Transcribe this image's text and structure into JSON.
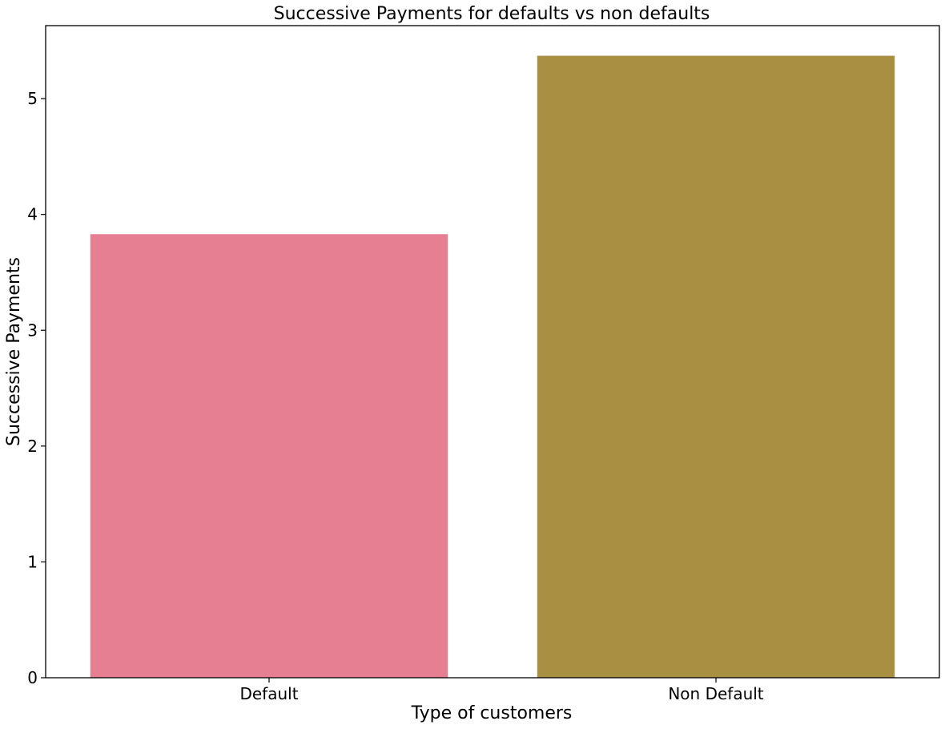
{
  "chart_data": {
    "type": "bar",
    "title": "Successive Payments for defaults vs non defaults",
    "xlabel": "Type of customers",
    "ylabel": "Successive Payments",
    "categories": [
      "Default",
      "Non Default"
    ],
    "values": [
      3.83,
      5.37
    ],
    "colors": [
      "#e77f92",
      "#a98f42"
    ],
    "ylim": [
      0,
      5.63
    ],
    "yticks": [
      0,
      1,
      2,
      3,
      4,
      5
    ],
    "grid": false,
    "legend": "none"
  }
}
